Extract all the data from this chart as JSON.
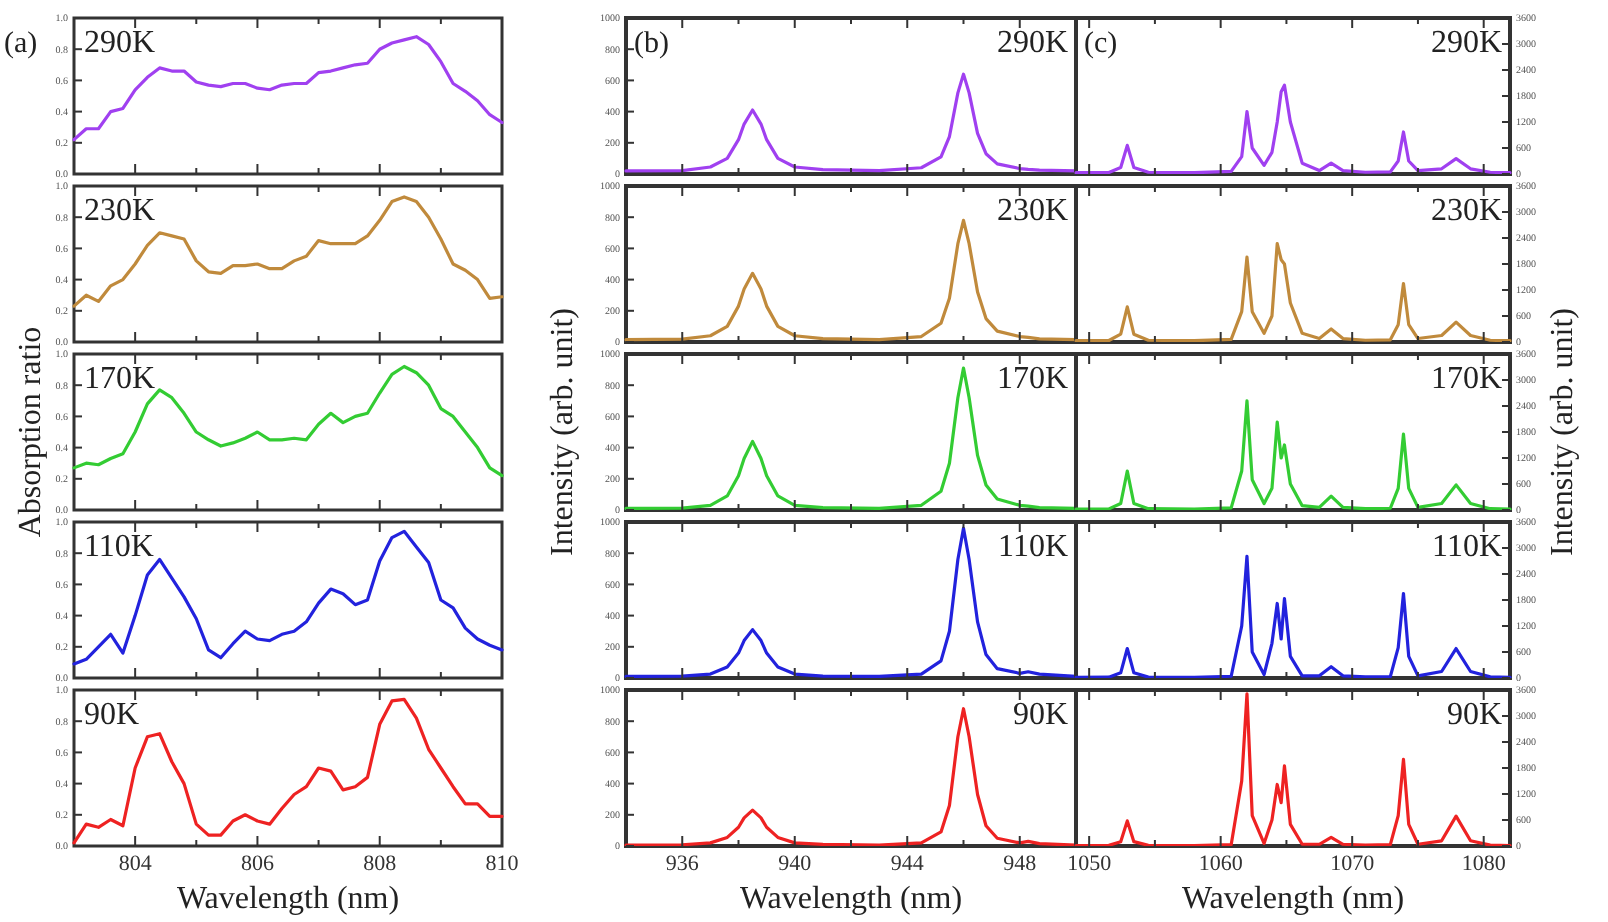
{
  "chart_data": [
    {
      "type": "line",
      "annotations": [
        "290K",
        "(a)"
      ],
      "x": [
        803,
        803.2,
        803.4,
        803.6,
        803.8,
        804,
        804.2,
        804.4,
        804.6,
        804.8,
        805,
        805.2,
        805.4,
        805.6,
        805.8,
        806,
        806.2,
        806.4,
        806.6,
        806.8,
        807,
        807.2,
        807.4,
        807.6,
        807.8,
        808,
        808.2,
        808.4,
        808.6,
        808.8,
        809,
        809.2,
        809.4,
        809.6,
        809.8,
        810
      ],
      "series": [
        {
          "color": "#a040f0",
          "values": [
            0.22,
            0.29,
            0.29,
            0.4,
            0.42,
            0.54,
            0.62,
            0.68,
            0.66,
            0.66,
            0.59,
            0.57,
            0.56,
            0.58,
            0.58,
            0.55,
            0.54,
            0.57,
            0.58,
            0.58,
            0.65,
            0.66,
            0.68,
            0.7,
            0.71,
            0.8,
            0.84,
            0.86,
            0.88,
            0.83,
            0.72,
            0.58,
            0.53,
            0.47,
            0.38,
            0.33
          ]
        }
      ],
      "xlim": [
        803,
        810
      ],
      "xticks": [
        804,
        {
          "value": 805,
          "label": null
        },
        806,
        {
          "value": 807,
          "label": null
        },
        808,
        {
          "value": 809,
          "label": null
        },
        810
      ],
      "ylim": [
        0,
        1
      ],
      "yticks": [
        {
          "value": 0,
          "label": "0.0"
        },
        {
          "value": 0.2,
          "label": "0.2"
        },
        {
          "value": 0.4,
          "label": "0.4"
        },
        {
          "value": 0.6,
          "label": "0.6"
        },
        {
          "value": 0.8,
          "label": "0.8"
        },
        {
          "value": 1,
          "label": "1.0"
        }
      ],
      "tick_labels": "y"
    },
    {
      "type": "line",
      "annotations": [
        "230K"
      ],
      "x": [
        803,
        803.2,
        803.4,
        803.6,
        803.8,
        804,
        804.2,
        804.4,
        804.6,
        804.8,
        805,
        805.2,
        805.4,
        805.6,
        805.8,
        806,
        806.2,
        806.4,
        806.6,
        806.8,
        807,
        807.2,
        807.4,
        807.6,
        807.8,
        808,
        808.2,
        808.4,
        808.6,
        808.8,
        809,
        809.2,
        809.4,
        809.6,
        809.8,
        810
      ],
      "series": [
        {
          "color": "#c08a3c",
          "values": [
            0.23,
            0.3,
            0.26,
            0.36,
            0.4,
            0.5,
            0.62,
            0.7,
            0.68,
            0.66,
            0.52,
            0.45,
            0.44,
            0.49,
            0.49,
            0.5,
            0.47,
            0.47,
            0.52,
            0.55,
            0.65,
            0.63,
            0.63,
            0.63,
            0.68,
            0.78,
            0.9,
            0.93,
            0.9,
            0.8,
            0.66,
            0.5,
            0.46,
            0.4,
            0.28,
            0.29
          ]
        }
      ],
      "xlim": [
        803,
        810
      ],
      "xticks": [
        804,
        {
          "value": 805,
          "label": null
        },
        806,
        {
          "value": 807,
          "label": null
        },
        808,
        {
          "value": 809,
          "label": null
        },
        810
      ],
      "ylim": [
        0,
        1
      ],
      "yticks": [
        {
          "value": 0,
          "label": "0.0"
        },
        {
          "value": 0.2,
          "label": "0.2"
        },
        {
          "value": 0.4,
          "label": "0.4"
        },
        {
          "value": 0.6,
          "label": "0.6"
        },
        {
          "value": 0.8,
          "label": "0.8"
        },
        {
          "value": 1,
          "label": "1.0"
        }
      ],
      "tick_labels": "y"
    },
    {
      "type": "line",
      "annotations": [
        "170K"
      ],
      "ylabel": "Absorption ratio",
      "x": [
        803,
        803.2,
        803.4,
        803.6,
        803.8,
        804,
        804.2,
        804.4,
        804.6,
        804.8,
        805,
        805.2,
        805.4,
        805.6,
        805.8,
        806,
        806.2,
        806.4,
        806.6,
        806.8,
        807,
        807.2,
        807.4,
        807.6,
        807.8,
        808,
        808.2,
        808.4,
        808.6,
        808.8,
        809,
        809.2,
        809.4,
        809.6,
        809.8,
        810
      ],
      "series": [
        {
          "color": "#33cc33",
          "values": [
            0.27,
            0.3,
            0.29,
            0.33,
            0.36,
            0.5,
            0.68,
            0.77,
            0.72,
            0.62,
            0.5,
            0.45,
            0.41,
            0.43,
            0.46,
            0.5,
            0.45,
            0.45,
            0.46,
            0.45,
            0.55,
            0.62,
            0.56,
            0.6,
            0.62,
            0.75,
            0.87,
            0.92,
            0.88,
            0.8,
            0.65,
            0.6,
            0.5,
            0.4,
            0.27,
            0.22
          ]
        }
      ],
      "xlim": [
        803,
        810
      ],
      "xticks": [
        804,
        {
          "value": 805,
          "label": null
        },
        806,
        {
          "value": 807,
          "label": null
        },
        808,
        {
          "value": 809,
          "label": null
        },
        810
      ],
      "ylim": [
        0,
        1
      ],
      "yticks": [
        {
          "value": 0,
          "label": "0.0"
        },
        {
          "value": 0.2,
          "label": "0.2"
        },
        {
          "value": 0.4,
          "label": "0.4"
        },
        {
          "value": 0.6,
          "label": "0.6"
        },
        {
          "value": 0.8,
          "label": "0.8"
        },
        {
          "value": 1,
          "label": "1.0"
        }
      ],
      "tick_labels": "y"
    },
    {
      "type": "line",
      "annotations": [
        "110K"
      ],
      "x": [
        803,
        803.2,
        803.4,
        803.6,
        803.8,
        804,
        804.2,
        804.4,
        804.6,
        804.8,
        805,
        805.2,
        805.4,
        805.6,
        805.8,
        806,
        806.2,
        806.4,
        806.6,
        806.8,
        807,
        807.2,
        807.4,
        807.6,
        807.8,
        808,
        808.2,
        808.4,
        808.6,
        808.8,
        809,
        809.2,
        809.4,
        809.6,
        809.8,
        810
      ],
      "series": [
        {
          "color": "#2222dd",
          "values": [
            0.09,
            0.12,
            0.2,
            0.28,
            0.16,
            0.4,
            0.66,
            0.76,
            0.64,
            0.52,
            0.38,
            0.18,
            0.13,
            0.22,
            0.3,
            0.25,
            0.24,
            0.28,
            0.3,
            0.36,
            0.48,
            0.57,
            0.54,
            0.47,
            0.5,
            0.75,
            0.9,
            0.94,
            0.84,
            0.74,
            0.5,
            0.45,
            0.32,
            0.25,
            0.21,
            0.18
          ]
        }
      ],
      "xlim": [
        803,
        810
      ],
      "xticks": [
        804,
        {
          "value": 805,
          "label": null
        },
        806,
        {
          "value": 807,
          "label": null
        },
        808,
        {
          "value": 809,
          "label": null
        },
        810
      ],
      "ylim": [
        0,
        1
      ],
      "yticks": [
        {
          "value": 0,
          "label": "0.0"
        },
        {
          "value": 0.2,
          "label": "0.2"
        },
        {
          "value": 0.4,
          "label": "0.4"
        },
        {
          "value": 0.6,
          "label": "0.6"
        },
        {
          "value": 0.8,
          "label": "0.8"
        },
        {
          "value": 1,
          "label": "1.0"
        }
      ],
      "tick_labels": "y"
    },
    {
      "type": "line",
      "annotations": [
        "90K"
      ],
      "xlabel": "Wavelength (nm)",
      "x": [
        803,
        803.2,
        803.4,
        803.6,
        803.8,
        804,
        804.2,
        804.4,
        804.6,
        804.8,
        805,
        805.2,
        805.4,
        805.6,
        805.8,
        806,
        806.2,
        806.4,
        806.6,
        806.8,
        807,
        807.2,
        807.4,
        807.6,
        807.8,
        808,
        808.2,
        808.4,
        808.6,
        808.8,
        809,
        809.2,
        809.4,
        809.6,
        809.8,
        810
      ],
      "series": [
        {
          "color": "#ee2222",
          "values": [
            0.02,
            0.14,
            0.12,
            0.17,
            0.13,
            0.5,
            0.7,
            0.72,
            0.54,
            0.4,
            0.14,
            0.07,
            0.07,
            0.16,
            0.2,
            0.16,
            0.14,
            0.24,
            0.33,
            0.38,
            0.5,
            0.48,
            0.36,
            0.38,
            0.44,
            0.78,
            0.93,
            0.94,
            0.82,
            0.62,
            0.5,
            0.38,
            0.27,
            0.27,
            0.19,
            0.19
          ]
        }
      ],
      "xlim": [
        803,
        810
      ],
      "xticks": [
        804,
        {
          "value": 805,
          "label": null
        },
        806,
        {
          "value": 807,
          "label": null
        },
        808,
        {
          "value": 809,
          "label": null
        },
        810
      ],
      "ylim": [
        0,
        1
      ],
      "yticks": [
        {
          "value": 0,
          "label": "0.0"
        },
        {
          "value": 0.2,
          "label": "0.2"
        },
        {
          "value": 0.4,
          "label": "0.4"
        },
        {
          "value": 0.6,
          "label": "0.6"
        },
        {
          "value": 0.8,
          "label": "0.8"
        },
        {
          "value": 1,
          "label": "1.0"
        }
      ]
    },
    {
      "type": "line",
      "annotations": [
        "290K",
        "(b)"
      ],
      "x": [
        934,
        936,
        937,
        937.6,
        938,
        938.2,
        938.5,
        938.8,
        939,
        939.4,
        940,
        941,
        943,
        944.5,
        945.2,
        945.5,
        945.8,
        946,
        946.2,
        946.5,
        946.8,
        947.2,
        948,
        948.3,
        948.7,
        950
      ],
      "series": [
        {
          "color": "#a040f0",
          "values": [
            20,
            22,
            45,
            100,
            220,
            320,
            410,
            320,
            220,
            100,
            45,
            28,
            22,
            40,
            110,
            240,
            520,
            640,
            520,
            260,
            130,
            65,
            35,
            30,
            25,
            20
          ]
        }
      ],
      "xlim": [
        934,
        950
      ],
      "xticks": [
        936,
        {
          "value": 938,
          "label": null
        },
        940,
        {
          "value": 942,
          "label": null
        },
        944,
        {
          "value": 946,
          "label": null
        },
        948
      ],
      "ylim": [
        0,
        1000
      ],
      "yticks": [
        0,
        200,
        400,
        600,
        800,
        1000
      ],
      "tick_labels": "y"
    },
    {
      "type": "line",
      "annotations": [
        "230K"
      ],
      "x": [
        934,
        936,
        937,
        937.6,
        938,
        938.2,
        938.5,
        938.8,
        939,
        939.4,
        940,
        941,
        943,
        944.5,
        945.2,
        945.5,
        945.8,
        946,
        946.2,
        946.5,
        946.8,
        947.2,
        948,
        948.3,
        948.7,
        950
      ],
      "series": [
        {
          "color": "#c08a3c",
          "values": [
            15,
            18,
            40,
            100,
            230,
            340,
            440,
            340,
            230,
            100,
            40,
            22,
            15,
            35,
            120,
            280,
            630,
            780,
            630,
            320,
            150,
            70,
            35,
            30,
            20,
            15
          ]
        }
      ],
      "xlim": [
        934,
        950
      ],
      "xticks": [
        936,
        {
          "value": 938,
          "label": null
        },
        940,
        {
          "value": 942,
          "label": null
        },
        944,
        {
          "value": 946,
          "label": null
        },
        948
      ],
      "ylim": [
        0,
        1000
      ],
      "yticks": [
        0,
        200,
        400,
        600,
        800,
        1000
      ],
      "tick_labels": "y"
    },
    {
      "type": "line",
      "annotations": [
        "170K"
      ],
      "ylabel": "Intensity (arb. unit)",
      "x": [
        934,
        936,
        937,
        937.6,
        938,
        938.2,
        938.5,
        938.8,
        939,
        939.4,
        940,
        941,
        943,
        944.5,
        945.2,
        945.5,
        945.8,
        946,
        946.2,
        946.5,
        946.8,
        947.2,
        948,
        948.3,
        948.7,
        950
      ],
      "series": [
        {
          "color": "#33cc33",
          "values": [
            10,
            12,
            30,
            90,
            220,
            330,
            440,
            330,
            220,
            90,
            30,
            15,
            10,
            30,
            120,
            300,
            720,
            910,
            720,
            350,
            160,
            70,
            30,
            25,
            15,
            10
          ]
        }
      ],
      "xlim": [
        934,
        950
      ],
      "xticks": [
        936,
        {
          "value": 938,
          "label": null
        },
        940,
        {
          "value": 942,
          "label": null
        },
        944,
        {
          "value": 946,
          "label": null
        },
        948
      ],
      "ylim": [
        0,
        1000
      ],
      "yticks": [
        0,
        200,
        400,
        600,
        800,
        1000
      ],
      "tick_labels": "y"
    },
    {
      "type": "line",
      "annotations": [
        "110K"
      ],
      "x": [
        934,
        936,
        937,
        937.6,
        938,
        938.2,
        938.5,
        938.8,
        939,
        939.4,
        940,
        941,
        943,
        944.5,
        945.2,
        945.5,
        945.8,
        946,
        946.2,
        946.5,
        946.8,
        947.2,
        948,
        948.3,
        948.7,
        950
      ],
      "series": [
        {
          "color": "#2222dd",
          "values": [
            10,
            12,
            25,
            70,
            160,
            240,
            310,
            240,
            160,
            70,
            25,
            12,
            10,
            25,
            110,
            300,
            760,
            960,
            760,
            360,
            150,
            60,
            30,
            40,
            25,
            10
          ]
        }
      ],
      "xlim": [
        934,
        950
      ],
      "xticks": [
        936,
        {
          "value": 938,
          "label": null
        },
        940,
        {
          "value": 942,
          "label": null
        },
        944,
        {
          "value": 946,
          "label": null
        },
        948
      ],
      "ylim": [
        0,
        1000
      ],
      "yticks": [
        0,
        200,
        400,
        600,
        800,
        1000
      ],
      "tick_labels": "y"
    },
    {
      "type": "line",
      "annotations": [
        "90K"
      ],
      "xlabel": "Wavelength (nm)",
      "x": [
        934,
        936,
        937,
        937.6,
        938,
        938.2,
        938.5,
        938.8,
        939,
        939.4,
        940,
        941,
        943,
        944.5,
        945.2,
        945.5,
        945.8,
        946,
        946.2,
        946.5,
        946.8,
        947.2,
        948,
        948.3,
        948.7,
        950
      ],
      "series": [
        {
          "color": "#ee2222",
          "values": [
            5,
            8,
            20,
            55,
            120,
            180,
            230,
            180,
            120,
            55,
            20,
            10,
            5,
            20,
            90,
            260,
            700,
            880,
            700,
            330,
            130,
            50,
            20,
            30,
            15,
            5
          ]
        }
      ],
      "xlim": [
        934,
        950
      ],
      "xticks": [
        936,
        {
          "value": 938,
          "label": null
        },
        940,
        {
          "value": 942,
          "label": null
        },
        944,
        {
          "value": 946,
          "label": null
        },
        948
      ],
      "ylim": [
        0,
        1000
      ],
      "yticks": [
        0,
        200,
        400,
        600,
        800,
        1000
      ]
    },
    {
      "type": "line",
      "annotations": [
        "290K",
        "(c)"
      ],
      "x": [
        1049,
        1051.5,
        1052.4,
        1052.9,
        1053.4,
        1054.5,
        1058,
        1060.8,
        1061.6,
        1062,
        1062.4,
        1063.3,
        1063.9,
        1064.3,
        1064.6,
        1064.85,
        1065.3,
        1066.2,
        1067.5,
        1068.4,
        1069.3,
        1071,
        1072.9,
        1073.5,
        1073.9,
        1074.3,
        1075,
        1076.8,
        1077.9,
        1079,
        1080.5,
        1082
      ],
      "series": [
        {
          "color": "#a040f0",
          "values": [
            30,
            35,
            150,
            660,
            150,
            40,
            30,
            60,
            400,
            1440,
            600,
            200,
            500,
            1200,
            1900,
            2050,
            1200,
            250,
            80,
            250,
            80,
            40,
            50,
            300,
            970,
            300,
            80,
            120,
            355,
            120,
            40,
            30
          ]
        }
      ],
      "xlim": [
        1049,
        1082
      ],
      "xticks": [
        1050,
        {
          "value": 1055,
          "label": null
        },
        1060,
        {
          "value": 1065,
          "label": null
        },
        1070,
        {
          "value": 1075,
          "label": null
        },
        1080
      ],
      "ylim": [
        0,
        3600
      ],
      "yticks": [
        0,
        600,
        1200,
        1800,
        2400,
        3000,
        3600
      ],
      "tick_labels": "y"
    },
    {
      "type": "line",
      "annotations": [
        "230K"
      ],
      "x": [
        1049,
        1051.5,
        1052.4,
        1052.9,
        1053.4,
        1054.5,
        1058,
        1060.8,
        1061.6,
        1062,
        1062.4,
        1063.3,
        1063.9,
        1064.3,
        1064.6,
        1064.85,
        1065.3,
        1066.2,
        1067.5,
        1068.4,
        1069.3,
        1071,
        1072.9,
        1073.5,
        1073.9,
        1074.3,
        1075,
        1076.8,
        1077.9,
        1079,
        1080.5,
        1082
      ],
      "series": [
        {
          "color": "#c08a3c",
          "values": [
            30,
            35,
            180,
            810,
            180,
            40,
            30,
            60,
            700,
            1960,
            700,
            200,
            600,
            2270,
            1900,
            1800,
            900,
            200,
            80,
            300,
            80,
            40,
            50,
            400,
            1350,
            400,
            80,
            150,
            460,
            150,
            40,
            30
          ]
        }
      ],
      "xlim": [
        1049,
        1082
      ],
      "xticks": [
        1050,
        {
          "value": 1055,
          "label": null
        },
        1060,
        {
          "value": 1065,
          "label": null
        },
        1070,
        {
          "value": 1075,
          "label": null
        },
        1080
      ],
      "ylim": [
        0,
        3600
      ],
      "yticks": [
        0,
        600,
        1200,
        1800,
        2400,
        3000,
        3600
      ],
      "tick_labels": "y"
    },
    {
      "type": "line",
      "annotations": [
        "170K"
      ],
      "ylabel": "Intensity (arb. unit)",
      "x": [
        1049,
        1051.5,
        1052.4,
        1052.9,
        1053.4,
        1054.5,
        1058,
        1060.8,
        1061.6,
        1062,
        1062.4,
        1063.3,
        1063.9,
        1064.3,
        1064.6,
        1064.85,
        1065.3,
        1066.2,
        1067.5,
        1068.4,
        1069.3,
        1071,
        1072.9,
        1073.5,
        1073.9,
        1074.3,
        1075,
        1076.8,
        1077.9,
        1079,
        1080.5,
        1082
      ],
      "series": [
        {
          "color": "#33cc33",
          "values": [
            20,
            25,
            150,
            900,
            150,
            30,
            20,
            50,
            900,
            2520,
            700,
            150,
            500,
            2030,
            1200,
            1500,
            600,
            100,
            60,
            320,
            60,
            30,
            40,
            500,
            1750,
            500,
            60,
            150,
            580,
            150,
            30,
            20
          ]
        }
      ],
      "xlim": [
        1049,
        1082
      ],
      "xticks": [
        1050,
        {
          "value": 1055,
          "label": null
        },
        1060,
        {
          "value": 1065,
          "label": null
        },
        1070,
        {
          "value": 1075,
          "label": null
        },
        1080
      ],
      "ylim": [
        0,
        3600
      ],
      "yticks": [
        0,
        600,
        1200,
        1800,
        2400,
        3000,
        3600
      ],
      "tick_labels": "y"
    },
    {
      "type": "line",
      "annotations": [
        "110K"
      ],
      "x": [
        1049,
        1051.5,
        1052.4,
        1052.9,
        1053.4,
        1054.5,
        1058,
        1060.8,
        1061.6,
        1062,
        1062.4,
        1063.3,
        1063.9,
        1064.3,
        1064.6,
        1064.85,
        1065.3,
        1066.2,
        1067.5,
        1068.4,
        1069.3,
        1071,
        1072.9,
        1073.5,
        1073.9,
        1074.3,
        1075,
        1076.8,
        1077.9,
        1079,
        1080.5,
        1082
      ],
      "series": [
        {
          "color": "#2222dd",
          "values": [
            15,
            20,
            120,
            680,
            120,
            20,
            15,
            40,
            1200,
            2810,
            600,
            80,
            800,
            1720,
            900,
            1830,
            500,
            50,
            50,
            260,
            50,
            25,
            30,
            700,
            1950,
            500,
            50,
            150,
            680,
            150,
            25,
            15
          ]
        }
      ],
      "xlim": [
        1049,
        1082
      ],
      "xticks": [
        1050,
        {
          "value": 1055,
          "label": null
        },
        1060,
        {
          "value": 1065,
          "label": null
        },
        1070,
        {
          "value": 1075,
          "label": null
        },
        1080
      ],
      "ylim": [
        0,
        3600
      ],
      "yticks": [
        0,
        600,
        1200,
        1800,
        2400,
        3000,
        3600
      ],
      "tick_labels": "y"
    },
    {
      "type": "line",
      "annotations": [
        "90K"
      ],
      "xlabel": "Wavelength (nm)",
      "x": [
        1049,
        1051.5,
        1052.4,
        1052.9,
        1053.4,
        1054.5,
        1058,
        1060.8,
        1061.6,
        1062,
        1062.4,
        1063.3,
        1063.9,
        1064.3,
        1064.6,
        1064.85,
        1065.3,
        1066.2,
        1067.5,
        1068.4,
        1069.3,
        1071,
        1072.9,
        1073.5,
        1073.9,
        1074.3,
        1075,
        1076.8,
        1077.9,
        1079,
        1080.5,
        1082
      ],
      "series": [
        {
          "color": "#ee2222",
          "values": [
            10,
            15,
            100,
            580,
            100,
            15,
            10,
            30,
            1500,
            3510,
            700,
            60,
            600,
            1420,
            1000,
            1850,
            500,
            40,
            40,
            200,
            40,
            20,
            30,
            700,
            2000,
            500,
            40,
            120,
            690,
            120,
            20,
            10
          ]
        }
      ],
      "xlim": [
        1049,
        1082
      ],
      "xticks": [
        1050,
        {
          "value": 1055,
          "label": null
        },
        1060,
        {
          "value": 1065,
          "label": null
        },
        1070,
        {
          "value": 1075,
          "label": null
        },
        1080
      ],
      "ylim": [
        0,
        3600
      ],
      "yticks": [
        0,
        600,
        1200,
        1800,
        2400,
        3000,
        3600
      ]
    }
  ]
}
